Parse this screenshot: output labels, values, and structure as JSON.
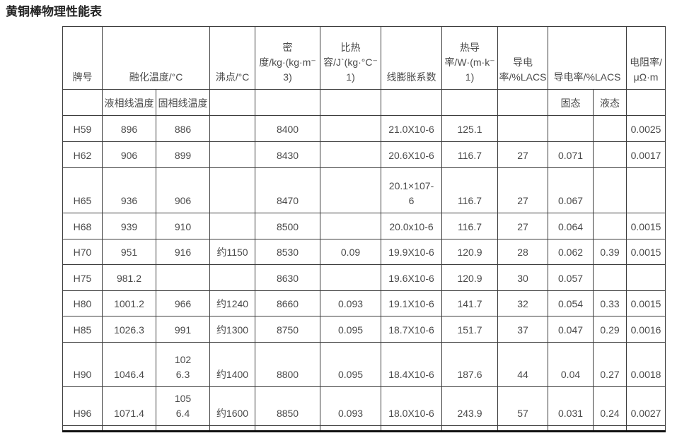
{
  "title": "黄铜棒物理性能表",
  "table": {
    "headers": {
      "grade": "牌号",
      "melting": "融化温度/°C",
      "boiling": "沸点/°C",
      "density": "密\n度/kg·(kg·m⁻\n3)",
      "specific_heat": "比热\n容/J`(kg·°C⁻1)",
      "linear_expansion": "线膨胀系数",
      "thermal_conductivity": "热导\n率/W·(m·k⁻\n1)",
      "conductivity": "导电\n率/%LACS",
      "conductivity_detail": "导电率/%LACS",
      "resistivity": "电阻率/\nμΩ·m"
    },
    "subheaders": {
      "liquidus": "液相线温度",
      "solidus": "固相线温度",
      "solid": "固态",
      "liquid": "液态"
    },
    "rows": [
      [
        "H59",
        "896",
        "886",
        "",
        "8400",
        "",
        "21.0X10-6",
        "125.1",
        "",
        "",
        "",
        "0.0025"
      ],
      [
        "H62",
        "906",
        "899",
        "",
        "8430",
        "",
        "20.6X10-6",
        "116.7",
        "27",
        "0.071",
        "",
        "0.0017"
      ],
      [
        "H65",
        "936",
        "906",
        "",
        "8470",
        "",
        "20.1×107-\n6",
        "116.7",
        "27",
        "0.067",
        "",
        ""
      ],
      [
        "H68",
        "939",
        "910",
        "",
        "8500",
        "",
        "20.0x10-6",
        "116.7",
        "27",
        "0.064",
        "",
        "0.0015"
      ],
      [
        "H70",
        "951",
        "916",
        "约1150",
        "8530",
        "0.09",
        "19.9X10-6",
        "120.9",
        "28",
        "0.062",
        "0.39",
        "0.0015"
      ],
      [
        "H75",
        "981.2",
        "",
        "",
        "8630",
        "",
        "19.6X10-6",
        "120.9",
        "30",
        "0.057",
        "",
        ""
      ],
      [
        "H80",
        "1001.2",
        "966",
        "约1240",
        "8660",
        "0.093",
        "19.1X10-6",
        "141.7",
        "32",
        "0.054",
        "0.33",
        "0.0015"
      ],
      [
        "H85",
        "1026.3",
        "991",
        "约1300",
        "8750",
        "0.095",
        "18.7X10-6",
        "151.7",
        "37",
        "0.047",
        "0.29",
        "0.0016"
      ],
      [
        "H90",
        "1046.4",
        "102\n6.3",
        "约1400",
        "8800",
        "0.095",
        "18.4X10-6",
        "187.6",
        "44",
        "0.04",
        "0.27",
        "0.0018"
      ],
      [
        "H96",
        "1071.4",
        "105\n6.4",
        "约1600",
        "8850",
        "0.093",
        "18.0X10-6",
        "243.9",
        "57",
        "0.031",
        "0.24",
        "0.0027"
      ],
      [
        "",
        "",
        "",
        "",
        "",
        "",
        "",
        "",
        "",
        "",
        "",
        ""
      ]
    ]
  }
}
